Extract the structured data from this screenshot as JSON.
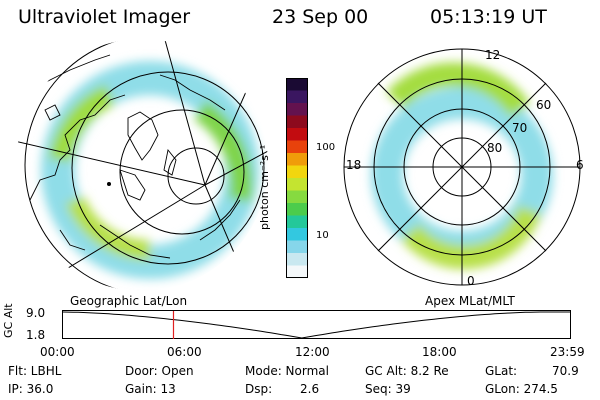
{
  "header": {
    "title": "Ultraviolet Imager",
    "date": "23 Sep 00",
    "time": "05:13:19 UT"
  },
  "colorbar": {
    "unit_label": "photon cm⁻²s⁻¹",
    "ticks": [
      "100",
      "10"
    ],
    "colors": [
      "#1a0a33",
      "#3a1660",
      "#63124e",
      "#8d0a1d",
      "#c20c10",
      "#e8420c",
      "#f09c0a",
      "#f2d60f",
      "#c4e430",
      "#86da40",
      "#4ccc4c",
      "#24c89a",
      "#33c8e0",
      "#86d6ea",
      "#c9e8f0",
      "#f4f8fa"
    ]
  },
  "polar": {
    "labels": [
      "12",
      "6",
      "0",
      "18",
      "60",
      "70",
      "80"
    ]
  },
  "altitude_plot": {
    "left_title": "Geographic Lat/Lon",
    "right_title": "Apex MLat/MLT",
    "y_axis_label": "GC Alt",
    "y_ticks": [
      "9.0",
      "1.8"
    ],
    "x_ticks": [
      "00:00",
      "06:00",
      "12:00",
      "18:00",
      "23:59"
    ],
    "current_time_fraction": 0.2175,
    "marker_color": "#e02020"
  },
  "footer": {
    "rows": [
      [
        "Flt: LBHL",
        "Door: Open",
        "Mode: Normal",
        "GC Alt: 8.2 Re",
        "GLat:",
        "70.9"
      ],
      [
        "IP: 36.0",
        "Gain: 13",
        "Dsp:",
        "2.6",
        "Seq: 39",
        "GLon: 274.5"
      ]
    ]
  }
}
